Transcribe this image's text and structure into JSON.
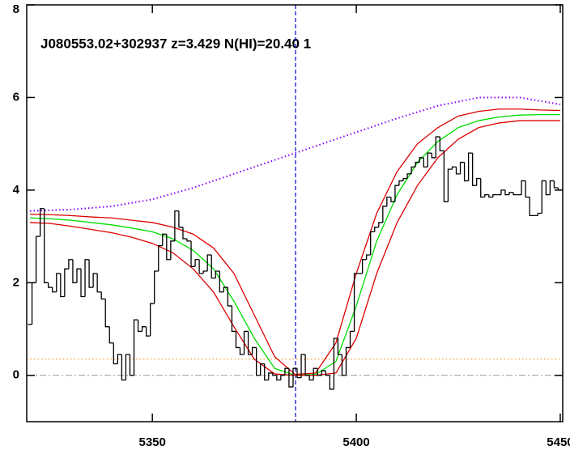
{
  "chart_data": {
    "type": "spectrum",
    "annotation": "J080553.02+302937 z=3.429 N(HI)=20.40 1",
    "xlim": [
      5319.2,
      5450.6
    ],
    "ylim": [
      -1,
      8
    ],
    "xticks": [
      5350,
      5400,
      5450
    ],
    "yticks": [
      0,
      2,
      4,
      6,
      8
    ],
    "histogram": {
      "color": "#000000",
      "x": [
        5320,
        5321,
        5322,
        5323,
        5324,
        5325,
        5326,
        5327,
        5328,
        5329,
        5330,
        5331,
        5332,
        5333,
        5334,
        5335,
        5336,
        5337,
        5338,
        5339,
        5340,
        5341,
        5342,
        5343,
        5344,
        5345,
        5346,
        5347,
        5348,
        5349,
        5350,
        5351,
        5352,
        5353,
        5354,
        5355,
        5356,
        5357,
        5358,
        5359,
        5360,
        5361,
        5362,
        5363,
        5364,
        5365,
        5366,
        5367,
        5368,
        5369,
        5370,
        5371,
        5372,
        5373,
        5374,
        5375,
        5376,
        5377,
        5378,
        5379,
        5380,
        5381,
        5382,
        5383,
        5384,
        5385,
        5386,
        5387,
        5388,
        5389,
        5390,
        5391,
        5392,
        5393,
        5394,
        5395,
        5396,
        5397,
        5398,
        5399,
        5400,
        5401,
        5402,
        5403,
        5404,
        5405,
        5406,
        5407,
        5408,
        5409,
        5410,
        5411,
        5412,
        5413,
        5414,
        5415,
        5416,
        5417,
        5418,
        5419,
        5420,
        5421,
        5422,
        5423,
        5424,
        5425,
        5426,
        5427,
        5428,
        5429,
        5430,
        5431,
        5432,
        5433,
        5434,
        5435,
        5436,
        5437,
        5438,
        5439,
        5440,
        5441,
        5442,
        5443,
        5444,
        5445,
        5446,
        5447,
        5448,
        5449,
        5450
      ],
      "values": [
        1.1,
        2.0,
        3.0,
        3.6,
        2.0,
        1.9,
        1.8,
        2.2,
        1.7,
        2.3,
        2.5,
        2.0,
        2.3,
        1.7,
        2.5,
        1.9,
        2.2,
        1.8,
        1.65,
        1.05,
        0.7,
        0.25,
        0.45,
        -0.1,
        0.45,
        0,
        1.2,
        0.95,
        1.05,
        0.85,
        1.55,
        2.25,
        2.8,
        3.05,
        2.5,
        2.9,
        3.55,
        3.2,
        2.95,
        2.9,
        2.35,
        2.5,
        2.2,
        2.25,
        2.6,
        2.1,
        2.25,
        1.8,
        1.9,
        1.5,
        0.95,
        0.6,
        0.45,
        0.95,
        0.45,
        0.6,
        0,
        0.25,
        -0.1,
        0.05,
        0,
        -0.1,
        0,
        0.15,
        -0.25,
        0.15,
        -0.05,
        0.45,
        0,
        -0.1,
        0.15,
        0,
        0.1,
        0,
        -0.3,
        0.8,
        0.45,
        0,
        0.6,
        0.95,
        2.2,
        2.2,
        2.5,
        2.6,
        3.1,
        3.2,
        3.3,
        3.65,
        3.85,
        3.75,
        4.1,
        4.2,
        4.25,
        4.35,
        4.5,
        4.6,
        4.7,
        4.5,
        4.8,
        4.7,
        5.15,
        4.85,
        3.75,
        4.45,
        4.5,
        4.35,
        4.6,
        4.2,
        4.8,
        4.1,
        4.25,
        3.85,
        3.9,
        3.85,
        3.9,
        3.9,
        4.0,
        3.9,
        3.95,
        3.9,
        3.9,
        4.2,
        3.85,
        3.45,
        3.45,
        3.5,
        4.2,
        3.9,
        4.2,
        4.05,
        4.0
      ]
    },
    "series": [
      {
        "color": "#00dd00",
        "style": "solid",
        "x": [
          5320,
          5325,
          5330,
          5335,
          5340,
          5345,
          5350,
          5355,
          5360,
          5365,
          5370,
          5375,
          5380,
          5385,
          5390,
          5395,
          5400,
          5405,
          5410,
          5415,
          5420,
          5425,
          5430,
          5435,
          5440,
          5445,
          5450
        ],
        "values": [
          3.4,
          3.38,
          3.35,
          3.3,
          3.25,
          3.18,
          3.1,
          2.95,
          2.7,
          2.3,
          1.6,
          0.8,
          0.15,
          0.0,
          0.02,
          0.3,
          1.5,
          2.9,
          3.9,
          4.6,
          5.05,
          5.35,
          5.5,
          5.58,
          5.62,
          5.63,
          5.63
        ]
      },
      {
        "color": "#dd0000",
        "style": "solid",
        "x": [
          5320,
          5325,
          5330,
          5335,
          5340,
          5345,
          5350,
          5355,
          5360,
          5365,
          5370,
          5375,
          5380,
          5385,
          5390,
          5395,
          5400,
          5405,
          5410,
          5415,
          5420,
          5425,
          5430,
          5435,
          5440,
          5445,
          5450
        ],
        "values": [
          3.48,
          3.47,
          3.45,
          3.42,
          3.4,
          3.35,
          3.3,
          3.2,
          3.05,
          2.75,
          2.2,
          1.3,
          0.4,
          0.02,
          0.05,
          0.7,
          2.2,
          3.5,
          4.4,
          5.0,
          5.35,
          5.6,
          5.7,
          5.75,
          5.75,
          5.73,
          5.72
        ]
      },
      {
        "color": "#dd0000",
        "style": "solid",
        "x": [
          5320,
          5325,
          5330,
          5335,
          5340,
          5345,
          5350,
          5355,
          5360,
          5365,
          5370,
          5375,
          5380,
          5385,
          5390,
          5395,
          5400,
          5405,
          5410,
          5415,
          5420,
          5425,
          5430,
          5435,
          5440,
          5445,
          5450
        ],
        "values": [
          3.3,
          3.28,
          3.22,
          3.15,
          3.08,
          2.98,
          2.85,
          2.65,
          2.3,
          1.8,
          1.05,
          0.35,
          0.03,
          0,
          0,
          0.05,
          0.8,
          2.2,
          3.3,
          4.1,
          4.7,
          5.1,
          5.35,
          5.45,
          5.5,
          5.5,
          5.5
        ]
      },
      {
        "color": "#8800ff",
        "style": "dotted",
        "x": [
          5320,
          5330,
          5340,
          5350,
          5360,
          5370,
          5380,
          5390,
          5400,
          5410,
          5420,
          5430,
          5440,
          5450
        ],
        "values": [
          3.55,
          3.58,
          3.65,
          3.8,
          4.05,
          4.35,
          4.65,
          4.95,
          5.25,
          5.55,
          5.82,
          6.0,
          6.0,
          5.85
        ]
      }
    ],
    "hlines": [
      {
        "value": 0,
        "color": "#999999",
        "style": "dashdot"
      },
      {
        "value": 0.35,
        "color": "#ff8800",
        "style": "dotted"
      }
    ],
    "vlines": [
      {
        "value": 5385.1,
        "color": "#0000cc",
        "style": "dashed"
      }
    ]
  }
}
